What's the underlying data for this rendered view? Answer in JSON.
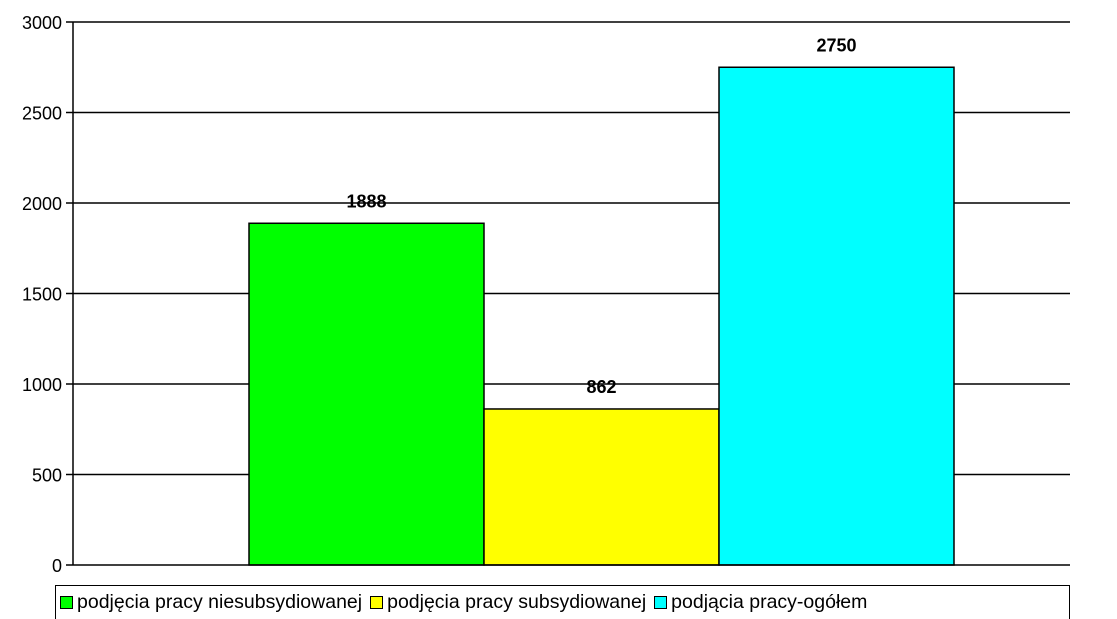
{
  "chart_data": {
    "type": "bar",
    "categories": [
      "podjęcia pracy niesubsydiowanej",
      "podjęcia pracy subsydiowanej",
      "podjącia pracy-ogółem"
    ],
    "values": [
      1888,
      862,
      2750
    ],
    "data_labels": [
      "1888",
      "862",
      "2750"
    ],
    "colors": [
      "#00ff00",
      "#ffff00",
      "#00ffff"
    ],
    "ylim": [
      0,
      3000
    ],
    "yticks": [
      0,
      500,
      1000,
      1500,
      2000,
      2500,
      3000
    ],
    "ytick_labels": [
      "0",
      "500",
      "1000",
      "1500",
      "2000",
      "2500",
      "3000"
    ],
    "grid": true,
    "legend_position": "bottom",
    "title": "",
    "xlabel": "",
    "ylabel": ""
  },
  "legend": {
    "items": [
      {
        "label": "podjęcia pracy niesubsydiowanej",
        "color": "#00ff00"
      },
      {
        "label": "podjęcia pracy subsydiowanej",
        "color": "#ffff00"
      },
      {
        "label": "podjącia pracy-ogółem",
        "color": "#00ffff"
      }
    ]
  }
}
